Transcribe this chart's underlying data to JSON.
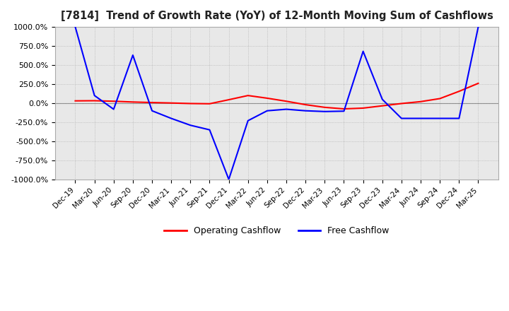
{
  "title": "[7814]  Trend of Growth Rate (YoY) of 12-Month Moving Sum of Cashflows",
  "ylim": [
    -1000,
    1000
  ],
  "yticks": [
    -1000,
    -750,
    -500,
    -250,
    0,
    250,
    500,
    750,
    1000
  ],
  "ytick_labels": [
    "-1000.0%",
    "-750.0%",
    "-500.0%",
    "-250.0%",
    "0.0%",
    "250.0%",
    "500.0%",
    "750.0%",
    "1000.0%"
  ],
  "legend_labels": [
    "Operating Cashflow",
    "Free Cashflow"
  ],
  "legend_colors": [
    "#ff0000",
    "#0000ff"
  ],
  "background_color": "#ffffff",
  "plot_bg_color": "#e8e8e8",
  "grid_color": "#aaaaaa",
  "x_labels": [
    "Dec-19",
    "Mar-20",
    "Jun-20",
    "Sep-20",
    "Dec-20",
    "Mar-21",
    "Jun-21",
    "Sep-21",
    "Dec-21",
    "Mar-22",
    "Jun-22",
    "Sep-22",
    "Dec-22",
    "Mar-23",
    "Jun-23",
    "Sep-23",
    "Dec-23",
    "Mar-24",
    "Jun-24",
    "Sep-24",
    "Dec-24",
    "Mar-25"
  ],
  "operating_cashflow": [
    30,
    32,
    25,
    15,
    8,
    2,
    -5,
    -8,
    45,
    100,
    65,
    25,
    -20,
    -55,
    -75,
    -65,
    -35,
    -5,
    20,
    60,
    155,
    260
  ],
  "free_cashflow": [
    1000,
    100,
    -80,
    630,
    -100,
    -200,
    -290,
    -350,
    -1000,
    -230,
    -100,
    -80,
    -100,
    -110,
    -105,
    680,
    50,
    -200,
    -200,
    -200,
    -200,
    1000
  ],
  "clamp_min": -1000,
  "clamp_max": 1000
}
